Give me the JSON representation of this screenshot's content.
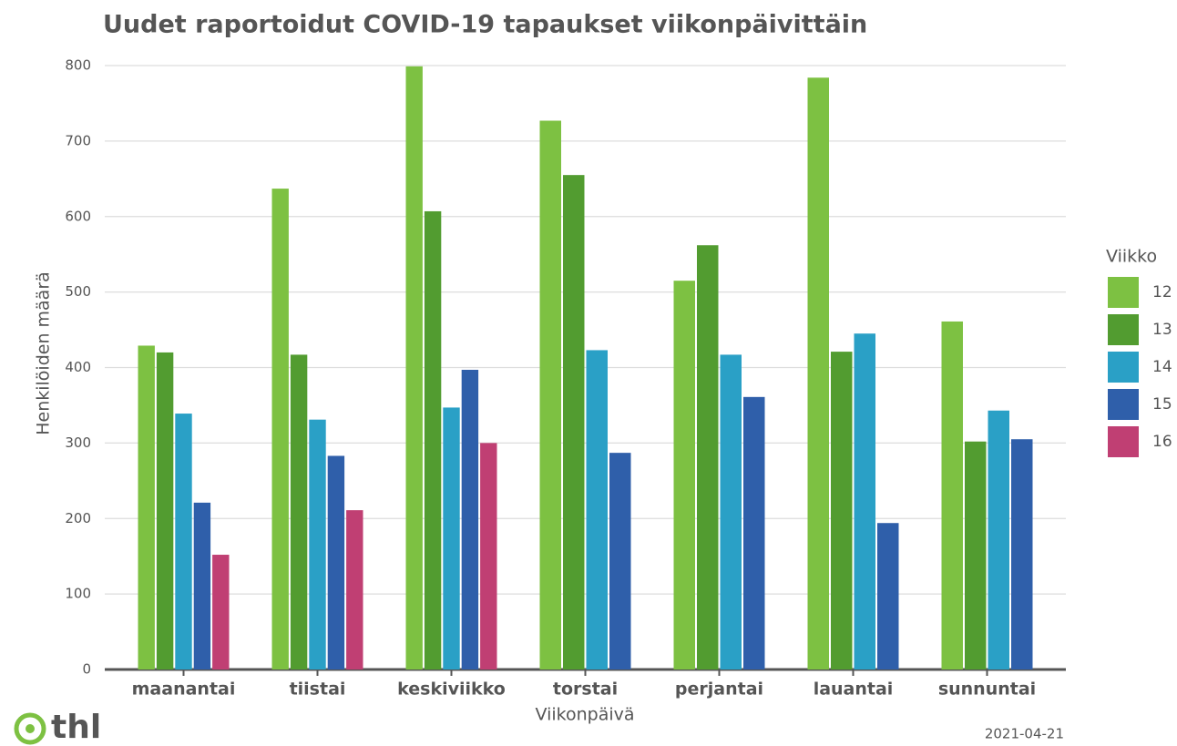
{
  "chart_data": {
    "type": "bar",
    "title": "Uudet raportoidut COVID-19 tapaukset viikonpäivittäin",
    "x_label": "Viikonpäivä",
    "y_label": "Henkilöiden määrä",
    "legend_title": "Viikko",
    "legend_position": "right",
    "categories": [
      "maanantai",
      "tiistai",
      "keskiviikko",
      "torstai",
      "perjantai",
      "lauantai",
      "sunnuntai"
    ],
    "series": [
      {
        "name": "12",
        "color": "#7dc142",
        "values": [
          429,
          637,
          799,
          727,
          515,
          784,
          461
        ]
      },
      {
        "name": "13",
        "color": "#529c30",
        "values": [
          420,
          417,
          607,
          655,
          562,
          421,
          302
        ]
      },
      {
        "name": "14",
        "color": "#2aa0c6",
        "values": [
          339,
          331,
          347,
          423,
          417,
          445,
          343
        ]
      },
      {
        "name": "15",
        "color": "#2f5faa",
        "values": [
          221,
          283,
          397,
          287,
          361,
          194,
          305
        ]
      },
      {
        "name": "16",
        "color": "#c03f73",
        "values": [
          152,
          211,
          300,
          null,
          null,
          null,
          null
        ]
      }
    ],
    "ylim": [
      0,
      800
    ],
    "yticks": [
      0,
      100,
      200,
      300,
      400,
      500,
      600,
      700,
      800
    ],
    "grid": true,
    "date": "2021-04-21"
  },
  "logo": "thl"
}
